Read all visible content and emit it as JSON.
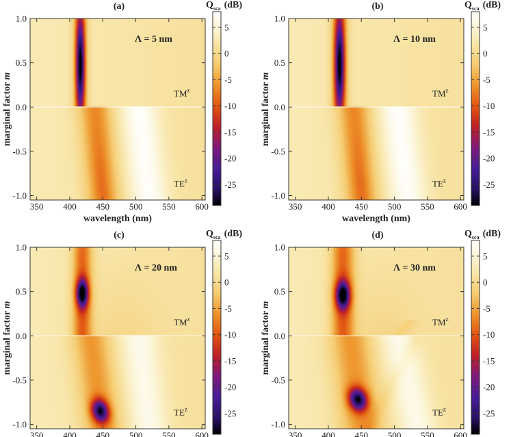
{
  "colorbar": {
    "label_main": "Q",
    "label_sub": "sca",
    "label_unit": "(dB)",
    "min": -29,
    "max": 8,
    "ticks": [
      5,
      0,
      -5,
      -10,
      -15,
      -20,
      -25
    ],
    "tick_labels": [
      "5",
      "0",
      "-5",
      "-10",
      "-15",
      "-20",
      "-25"
    ],
    "colors": [
      "#000000",
      "#2a1060",
      "#4020a0",
      "#7a1a80",
      "#c0202a",
      "#e05a10",
      "#f0a030",
      "#f5d37a",
      "#f7eec0",
      "#ffffff"
    ]
  },
  "chart_data": [
    {
      "type": "heatmap",
      "panel_label": "(a)",
      "annotation": "Λ = 5 nm",
      "lambda_nm": 5,
      "xlabel": "wavelength (nm)",
      "ylabel_main": "marginal factor ",
      "ylabel_italic": "m",
      "xlim": [
        340,
        605
      ],
      "ylim": [
        -1.05,
        1.0
      ],
      "xticks": [
        350,
        400,
        450,
        500,
        550,
        600
      ],
      "xtick_labels": [
        "350",
        "400",
        "450",
        "500",
        "550",
        "600"
      ],
      "yticks": [
        1.0,
        0.5,
        0.0,
        -0.5,
        -1.0
      ],
      "ytick_labels": [
        "1.0",
        "0.5",
        "0.0",
        "-0.5",
        "-1.0"
      ],
      "regions": [
        {
          "mode": "TM",
          "mode_sup": "z",
          "m_range": [
            0,
            1
          ]
        },
        {
          "mode": "TE",
          "mode_sup": "z",
          "m_range": [
            -1,
            0
          ]
        }
      ],
      "tm_resonance_nm": 416,
      "tm_min_db": -27,
      "te_resonance_nm": 444,
      "te_min_db": -9
    },
    {
      "type": "heatmap",
      "panel_label": "(b)",
      "annotation": "Λ = 10 nm",
      "lambda_nm": 10,
      "xlabel": "wavelength (nm)",
      "ylabel_main": "marginal factor ",
      "ylabel_italic": "m",
      "xlim": [
        340,
        605
      ],
      "ylim": [
        -1.05,
        1.0
      ],
      "xticks": [
        350,
        400,
        450,
        500,
        550,
        600
      ],
      "xtick_labels": [
        "350",
        "400",
        "450",
        "500",
        "550",
        "600"
      ],
      "yticks": [
        1.0,
        0.5,
        0.0,
        -0.5,
        -1.0
      ],
      "ytick_labels": [
        "1.0",
        "0.5",
        "0.0",
        "-0.5",
        "-1.0"
      ],
      "regions": [
        {
          "mode": "TM",
          "mode_sup": "z",
          "m_range": [
            0,
            1
          ]
        },
        {
          "mode": "TE",
          "mode_sup": "z",
          "m_range": [
            -1,
            0
          ]
        }
      ],
      "tm_resonance_nm": 417,
      "tm_min_db": -27,
      "te_resonance_nm": 444,
      "te_min_db": -10
    },
    {
      "type": "heatmap",
      "panel_label": "(c)",
      "annotation": "Λ = 20 nm",
      "lambda_nm": 20,
      "xlabel": "wavelength (nm)",
      "ylabel_main": "marginal factor ",
      "ylabel_italic": "m",
      "xlim": [
        340,
        605
      ],
      "ylim": [
        -1.05,
        1.0
      ],
      "xticks": [
        350,
        400,
        450,
        500,
        550,
        600
      ],
      "xtick_labels": [
        "350",
        "400",
        "450",
        "500",
        "550",
        "600"
      ],
      "yticks": [
        1.0,
        0.5,
        0.0,
        -0.5,
        -1.0
      ],
      "ytick_labels": [
        "1.0",
        "0.5",
        "0.0",
        "-0.5",
        "-1.0"
      ],
      "regions": [
        {
          "mode": "TM",
          "mode_sup": "z",
          "m_range": [
            0,
            1
          ]
        },
        {
          "mode": "TE",
          "mode_sup": "z",
          "m_range": [
            -1,
            0
          ]
        }
      ],
      "tm_resonance_nm": 419,
      "tm_resonance_m": 0.48,
      "tm_min_db": -27,
      "te_resonance_nm": 440,
      "te_resonance_m": -0.85,
      "te_min_db": -27
    },
    {
      "type": "heatmap",
      "panel_label": "(d)",
      "annotation": "Λ = 30 nm",
      "lambda_nm": 30,
      "xlabel": "wavelength (nm)",
      "ylabel_main": "marginal factor ",
      "ylabel_italic": "m",
      "xlim": [
        340,
        605
      ],
      "ylim": [
        -1.05,
        1.0
      ],
      "xticks": [
        350,
        400,
        450,
        500,
        550,
        600
      ],
      "xtick_labels": [
        "350",
        "400",
        "450",
        "500",
        "550",
        "600"
      ],
      "yticks": [
        1.0,
        0.5,
        0.0,
        -0.5,
        -1.0
      ],
      "ytick_labels": [
        "1.0",
        "0.5",
        "0.0",
        "-0.5",
        "-1.0"
      ],
      "regions": [
        {
          "mode": "TM",
          "mode_sup": "z",
          "m_range": [
            0,
            1
          ]
        },
        {
          "mode": "TE",
          "mode_sup": "z",
          "m_range": [
            -1,
            0
          ]
        }
      ],
      "tm_resonance_nm": 422,
      "tm_resonance_m": 0.46,
      "tm_min_db": -27,
      "te_resonance_nm": 441,
      "te_resonance_m": -0.72,
      "te_min_db": -27
    }
  ]
}
